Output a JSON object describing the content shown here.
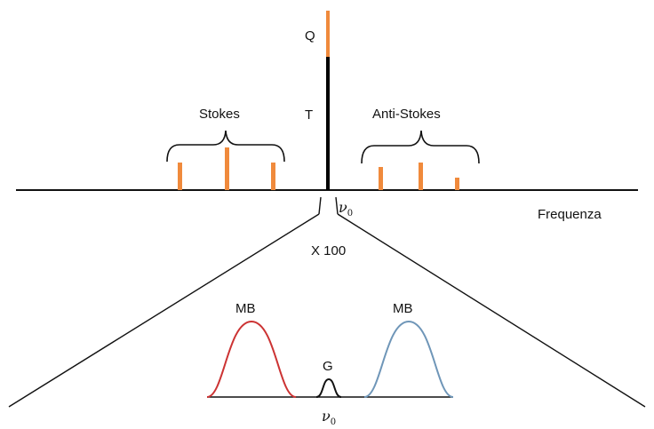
{
  "labels": {
    "q": "Q",
    "t": "T",
    "stokes": "Stokes",
    "anti_stokes": "Anti-Stokes",
    "frequency": "Frequenza",
    "zoom": "X 100",
    "mb_left": "MB",
    "mb_right": "MB",
    "g": "G",
    "nu_symbol": "ν",
    "nu_subscript": "0"
  },
  "colors": {
    "axis": "#111111",
    "central_line": "#000000",
    "raman_line": "#f08a3c",
    "mb_stokes": "#cc3333",
    "mb_anti_stokes": "#6f96b8",
    "gaussian": "#111111"
  }
}
